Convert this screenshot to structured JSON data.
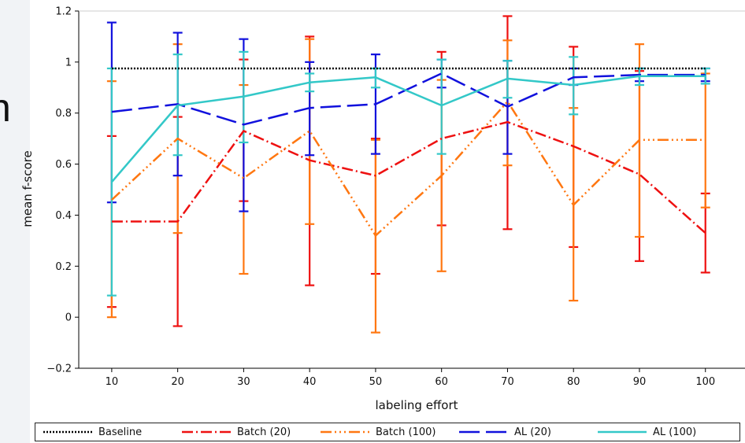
{
  "side_glyph": "n",
  "chart_data": {
    "type": "line",
    "title": "",
    "xlabel": "labeling effort",
    "ylabel": "mean f-score",
    "xlim": [
      5,
      106
    ],
    "ylim": [
      -0.2,
      1.2
    ],
    "x_ticks": [
      10,
      20,
      30,
      40,
      50,
      60,
      70,
      80,
      90,
      100
    ],
    "y_ticks": [
      -0.2,
      0,
      0.2,
      0.4,
      0.6,
      0.8,
      1,
      1.2
    ],
    "y_tick_labels": [
      "−0.2",
      "0",
      "0.2",
      "0.4",
      "0.6",
      "0.8",
      "1",
      "1.2"
    ],
    "grid": false,
    "legend_position": "bottom",
    "x": [
      10,
      20,
      30,
      40,
      50,
      60,
      70,
      80,
      90,
      100
    ],
    "series": [
      {
        "name": "Baseline",
        "color": "#000000",
        "dash": "2,2",
        "width": 2.5,
        "values": [
          0.975,
          0.975,
          0.975,
          0.975,
          0.975,
          0.975,
          0.975,
          0.975,
          0.975,
          0.975
        ]
      },
      {
        "name": "Batch (20)",
        "color": "#ee1111",
        "dash": "14,4,2,4",
        "width": 2.5,
        "values": [
          0.375,
          0.375,
          0.73,
          0.615,
          0.555,
          0.7,
          0.765,
          0.67,
          0.56,
          0.33
        ],
        "err_low": [
          0.04,
          -0.035,
          0.455,
          0.125,
          0.17,
          0.36,
          0.345,
          0.275,
          0.22,
          0.175
        ],
        "err_high": [
          0.71,
          0.785,
          1.01,
          1.1,
          0.7,
          1.04,
          1.18,
          1.06,
          0.965,
          0.485
        ]
      },
      {
        "name": "Batch (100)",
        "color": "#ff7711",
        "dash": "14,4,2,4,2,4,2,4",
        "width": 2.5,
        "values": [
          0.46,
          0.7,
          0.545,
          0.73,
          0.32,
          0.555,
          0.845,
          0.44,
          0.695,
          0.695
        ],
        "err_low": [
          0.0,
          0.33,
          0.17,
          0.365,
          -0.06,
          0.18,
          0.595,
          0.065,
          0.315,
          0.43
        ],
        "err_high": [
          0.925,
          1.07,
          0.91,
          1.09,
          0.695,
          0.93,
          1.085,
          0.82,
          1.07,
          0.955
        ]
      },
      {
        "name": "AL (20)",
        "color": "#1111dd",
        "dash": "26,8",
        "width": 2.5,
        "values": [
          0.805,
          0.835,
          0.755,
          0.82,
          0.835,
          0.955,
          0.825,
          0.94,
          0.95,
          0.95
        ],
        "err_low": [
          0.45,
          0.555,
          0.415,
          0.635,
          0.64,
          0.9,
          0.64,
          0.91,
          0.925,
          0.925
        ],
        "err_high": [
          1.155,
          1.115,
          1.09,
          1.0,
          1.03,
          1.01,
          1.005,
          0.975,
          0.975,
          0.975
        ]
      },
      {
        "name": "AL (100)",
        "color": "#33c8c8",
        "dash": "",
        "width": 2.5,
        "values": [
          0.53,
          0.83,
          0.865,
          0.92,
          0.94,
          0.83,
          0.935,
          0.91,
          0.945,
          0.945
        ],
        "err_low": [
          0.085,
          0.635,
          0.685,
          0.885,
          0.9,
          0.64,
          0.86,
          0.795,
          0.91,
          0.915
        ],
        "err_high": [
          0.975,
          1.03,
          1.04,
          0.955,
          0.975,
          1.01,
          1.005,
          1.02,
          0.975,
          0.975
        ]
      }
    ]
  }
}
